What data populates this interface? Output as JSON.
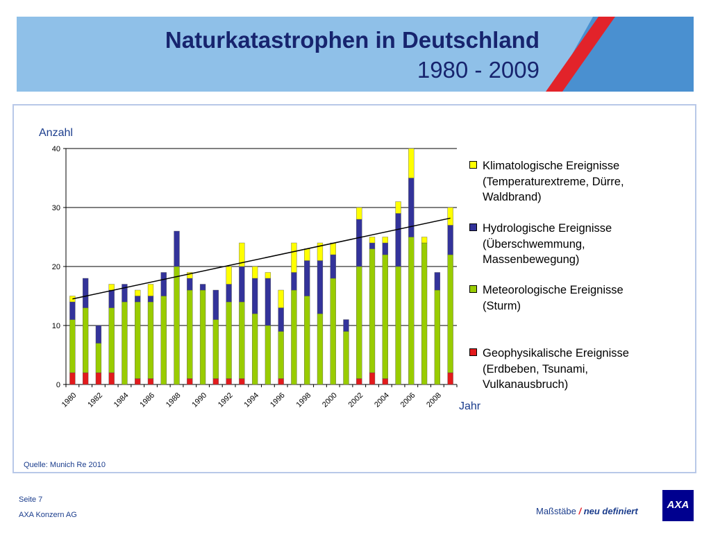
{
  "header": {
    "title": "Naturkatastrophen in Deutschland",
    "subtitle": "1980 - 2009"
  },
  "chart": {
    "ylabel": "Anzahl",
    "xlabel": "Jahr",
    "source": "Quelle: Munich Re 2010"
  },
  "legend": [
    {
      "label": "Klimatologische Ereignisse\n(Temperaturextreme, Dürre,\nWaldbrand)",
      "color": "#ffff00"
    },
    {
      "label": "Hydrologische Ereignisse\n(Überschwemmung,\nMassenbewegung)",
      "color": "#33339a"
    },
    {
      "label": "Meteorologische Ereignisse\n(Sturm)",
      "color": "#99cc00"
    },
    {
      "label": "Geophysikalische Ereignisse\n(Erdbeben, Tsunami,\nVulkanausbruch)",
      "color": "#e31a1c"
    }
  ],
  "footer": {
    "page": "Seite 7",
    "company": "AXA Konzern AG",
    "slogan_part1": "Maßstäbe",
    "slogan_slash": "/",
    "slogan_part2": "neu definiert",
    "logo_text": "AXA"
  },
  "colors": {
    "title": "#17246e",
    "header_bg": "#8fc0e8",
    "header_dark": "#4a90d0",
    "accent_red": "#e2232a",
    "trend": "#000000"
  },
  "chart_data": {
    "type": "bar",
    "stacked": true,
    "x": [
      1980,
      1981,
      1982,
      1983,
      1984,
      1985,
      1986,
      1987,
      1988,
      1989,
      1990,
      1991,
      1992,
      1993,
      1994,
      1995,
      1996,
      1997,
      1998,
      1999,
      2000,
      2001,
      2002,
      2003,
      2004,
      2005,
      2006,
      2007,
      2008,
      2009
    ],
    "tick_labels": [
      "1980",
      "1982",
      "1984",
      "1986",
      "1988",
      "1990",
      "1992",
      "1994",
      "1996",
      "1998",
      "2000",
      "2002",
      "2004",
      "2006",
      "2008"
    ],
    "series": [
      {
        "name": "Geophysikalische Ereignisse (Erdbeben, Tsunami, Vulkanausbruch)",
        "color": "#e31a1c",
        "values": [
          2,
          2,
          2,
          2,
          0,
          1,
          1,
          0,
          0,
          1,
          0,
          1,
          1,
          1,
          0,
          0,
          1,
          0,
          0,
          0,
          0,
          0,
          1,
          2,
          1,
          0,
          0,
          0,
          0,
          2
        ]
      },
      {
        "name": "Meteorologische Ereignisse (Sturm)",
        "color": "#99cc00",
        "values": [
          9,
          11,
          5,
          11,
          14,
          13,
          13,
          15,
          20,
          15,
          16,
          10,
          13,
          13,
          12,
          10,
          8,
          16,
          15,
          12,
          18,
          9,
          19,
          21,
          21,
          20,
          25,
          24,
          16,
          20
        ]
      },
      {
        "name": "Hydrologische Ereignisse (Überschwemmung, Massenbewegung)",
        "color": "#33339a",
        "values": [
          3,
          5,
          3,
          3,
          3,
          1,
          1,
          4,
          6,
          2,
          1,
          5,
          3,
          6,
          6,
          8,
          4,
          3,
          6,
          9,
          4,
          2,
          8,
          1,
          2,
          9,
          10,
          0,
          3,
          5
        ]
      },
      {
        "name": "Klimatologische Ereignisse (Temperaturextreme, Dürre, Waldbrand)",
        "color": "#ffff00",
        "values": [
          1,
          0,
          0,
          1,
          0,
          1,
          2,
          0,
          0,
          1,
          0,
          0,
          3,
          4,
          2,
          1,
          3,
          5,
          2,
          3,
          2,
          0,
          2,
          1,
          1,
          2,
          5,
          1,
          0,
          3
        ]
      }
    ],
    "trend": {
      "start": 14.5,
      "end": 28.2
    },
    "ylim": [
      0,
      40
    ],
    "yticks": [
      0,
      10,
      20,
      30,
      40
    ],
    "grid": true,
    "legend_position": "right"
  }
}
